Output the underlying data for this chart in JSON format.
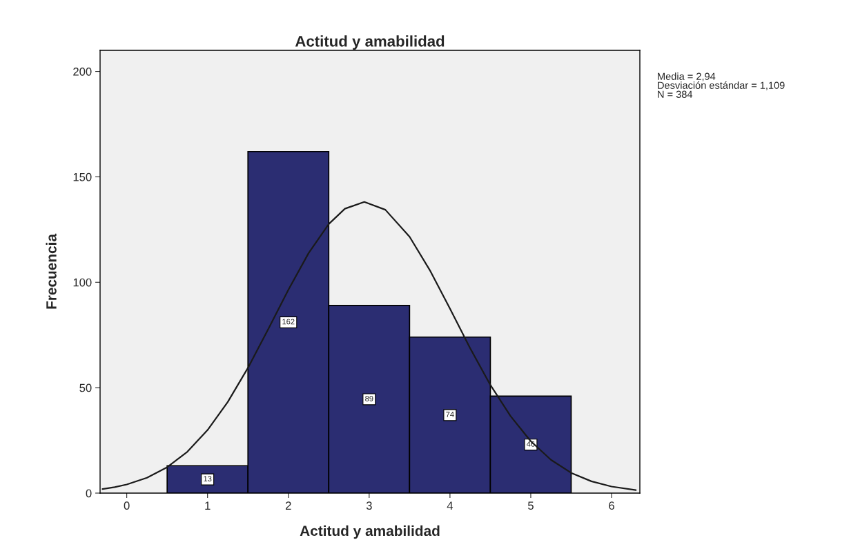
{
  "chart_data": {
    "type": "histogram",
    "title": "Actitud y amabilidad",
    "xlabel": "Actitud y amabilidad",
    "ylabel": "Frecuencia",
    "bins": [
      0.5,
      1.5,
      2.5,
      3.5,
      4.5,
      5.5
    ],
    "values": [
      13,
      162,
      89,
      74,
      46
    ],
    "color": "#2b2d72",
    "value_labels": [
      "13",
      "162",
      "89",
      "74",
      "46"
    ],
    "series": [
      {
        "type": "line",
        "color": "#1a1a1a",
        "x": [
          -0.3,
          -0.15,
          0,
          0.25,
          0.5,
          0.75,
          1,
          1.25,
          1.5,
          1.75,
          2,
          2.25,
          2.5,
          2.7,
          2.94,
          3.2,
          3.5,
          3.75,
          4,
          4.25,
          4.5,
          4.75,
          5,
          5.25,
          5.5,
          5.75,
          6,
          6.3
        ],
        "values": [
          1.9,
          2.8,
          4.1,
          7.3,
          12.3,
          19.6,
          29.9,
          43.2,
          59.4,
          77.7,
          96.4,
          113.8,
          127.6,
          134.9,
          138.1,
          134.4,
          121.6,
          105.8,
          87.5,
          68.7,
          51.3,
          36.5,
          24.6,
          15.8,
          9.6,
          5.6,
          3.1,
          1.4
        ]
      }
    ],
    "xlim": [
      -0.33,
      6.35
    ],
    "xticks": [
      0,
      1,
      2,
      3,
      4,
      5,
      6
    ],
    "ylim": [
      0,
      210
    ],
    "yticks": [
      0,
      50,
      100,
      150,
      200
    ],
    "grid": false,
    "annotations": [
      "Media = 2,94",
      "Desviación estándar = 1,109",
      "N = 384"
    ]
  }
}
